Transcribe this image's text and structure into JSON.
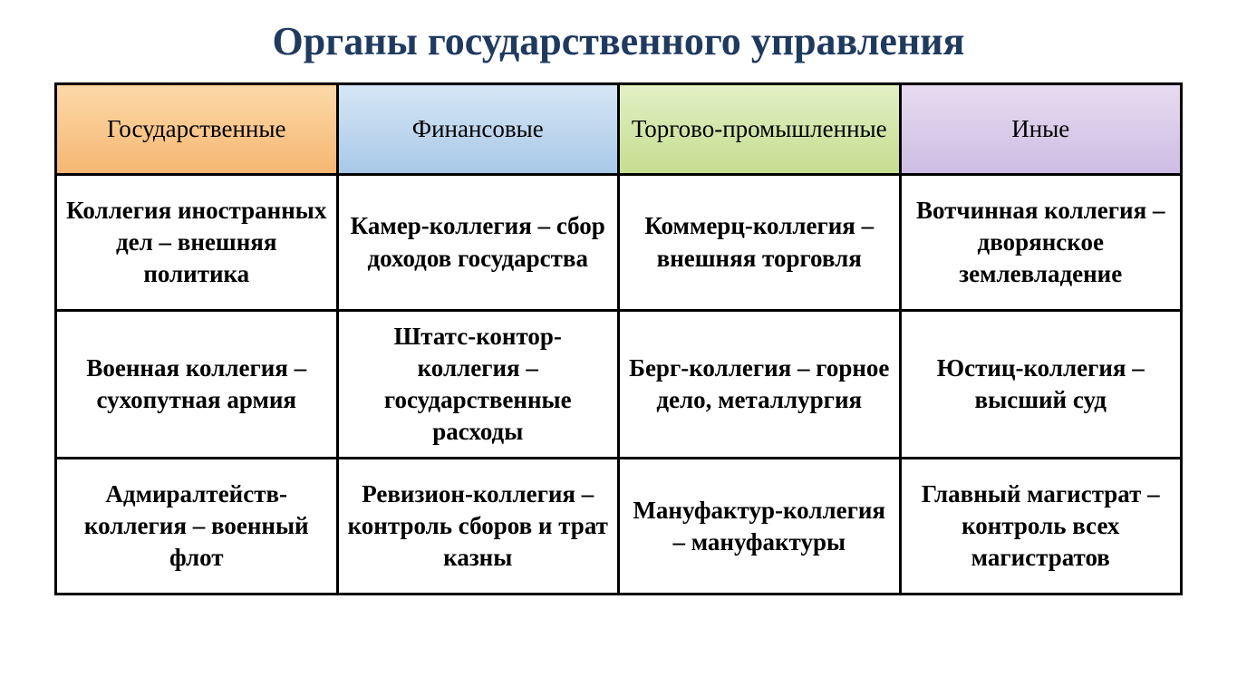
{
  "title": "Органы государственного управления",
  "table": {
    "columns": [
      {
        "label": "Государственные",
        "bg_gradient": [
          "#fdd9a8",
          "#f5b671"
        ],
        "border_color": "#d88c3a"
      },
      {
        "label": "Финансовые",
        "bg_gradient": [
          "#d6e6f5",
          "#a8c8e8"
        ],
        "border_color": "#5a8dc0"
      },
      {
        "label": "Торгово-промышленные",
        "bg_gradient": [
          "#e2efc5",
          "#c5dd8f"
        ],
        "border_color": "#8fb04a"
      },
      {
        "label": "Иные",
        "bg_gradient": [
          "#e6dcf0",
          "#cdbce3"
        ],
        "border_color": "#9678b8"
      }
    ],
    "rows": [
      [
        "Коллегия иностранных дел – внешняя политика",
        "Камер-коллегия – сбор доходов государства",
        "Коммерц-коллегия – внешняя торговля",
        "Вотчинная коллегия – дворянское землевладение"
      ],
      [
        "Военная коллегия – сухопутная армия",
        "Штатс-контор-коллегия – государственные расходы",
        "Берг-коллегия – горное дело, металлургия",
        "Юстиц-коллегия – высший суд"
      ],
      [
        "Адмиралтейств-коллегия – военный флот",
        "Ревизион-коллегия – контроль сборов и трат казны",
        "Мануфактур-коллегия – мануфактуры",
        "Главный магистрат – контроль всех магистратов"
      ]
    ],
    "styling": {
      "title_color": "#1f3a5f",
      "title_fontsize": 44,
      "header_fontsize": 27,
      "cell_fontsize": 27,
      "cell_fontweight": "bold",
      "border_color": "#000000",
      "border_width": 3,
      "background_color": "#ffffff"
    }
  }
}
